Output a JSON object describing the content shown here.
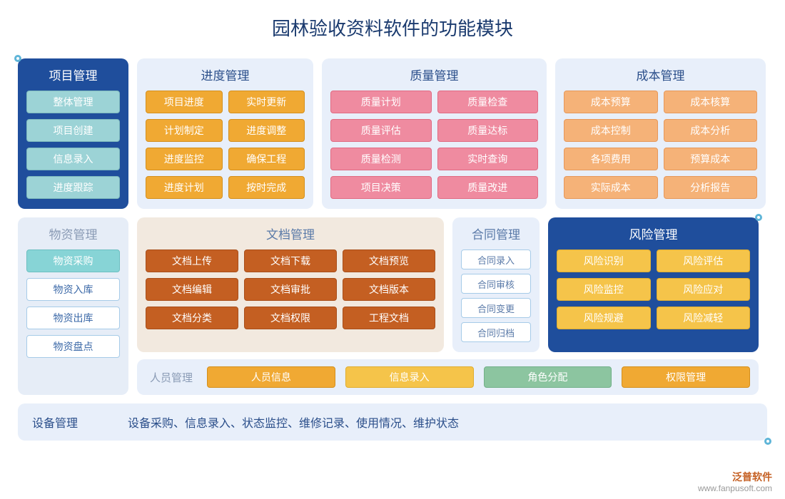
{
  "title": "园林验收资料软件的功能模块",
  "colors": {
    "page_bg": "#ffffff",
    "title_color": "#1a3a6e",
    "light_panel": "#e8effa",
    "dark_panel": "#1f4e9c",
    "beige_panel": "#f2e9df",
    "teal_item": "#9cd3d6",
    "orange_item": "#f0a933",
    "pink_item": "#ef8ba0",
    "peach_item": "#f5b278",
    "brown_item": "#c45f22",
    "yellow_item": "#f5c44a",
    "green_item": "#8cc5a0",
    "dot_border": "#5fb5d8"
  },
  "modules": {
    "project": {
      "title": "项目管理",
      "items": [
        "整体管理",
        "项目创建",
        "信息录入",
        "进度跟踪"
      ]
    },
    "progress": {
      "title": "进度管理",
      "items": [
        "项目进度",
        "实时更新",
        "计划制定",
        "进度调整",
        "进度监控",
        "确保工程",
        "进度计划",
        "按时完成"
      ]
    },
    "quality": {
      "title": "质量管理",
      "items": [
        "质量计划",
        "质量检查",
        "质量评估",
        "质量达标",
        "质量检测",
        "实时查询",
        "项目决策",
        "质量改进"
      ]
    },
    "cost": {
      "title": "成本管理",
      "items": [
        "成本预算",
        "成本核算",
        "成本控制",
        "成本分析",
        "各项费用",
        "预算成本",
        "实际成本",
        "分析报告"
      ]
    },
    "material": {
      "title": "物资管理",
      "items": [
        "物资采购",
        "物资入库",
        "物资出库",
        "物资盘点"
      ]
    },
    "doc": {
      "title": "文档管理",
      "items": [
        "文档上传",
        "文档下载",
        "文档预览",
        "文档编辑",
        "文档审批",
        "文档版本",
        "文档分类",
        "文档权限",
        "工程文档"
      ]
    },
    "contract": {
      "title": "合同管理",
      "items": [
        "合同录入",
        "合同审核",
        "合同变更",
        "合同归档"
      ]
    },
    "risk": {
      "title": "风险管理",
      "items": [
        "风险识别",
        "风险评估",
        "风险监控",
        "风险应对",
        "风险规避",
        "风险减轻"
      ]
    },
    "personnel": {
      "title": "人员管理",
      "items": [
        "人员信息",
        "信息录入",
        "角色分配",
        "权限管理"
      ]
    },
    "equipment": {
      "title": "设备管理",
      "desc": "设备采购、信息录入、状态监控、维修记录、使用情况、维护状态"
    }
  },
  "watermark": {
    "brand": "泛普软件",
    "url": "www.fanpusoft.com"
  }
}
